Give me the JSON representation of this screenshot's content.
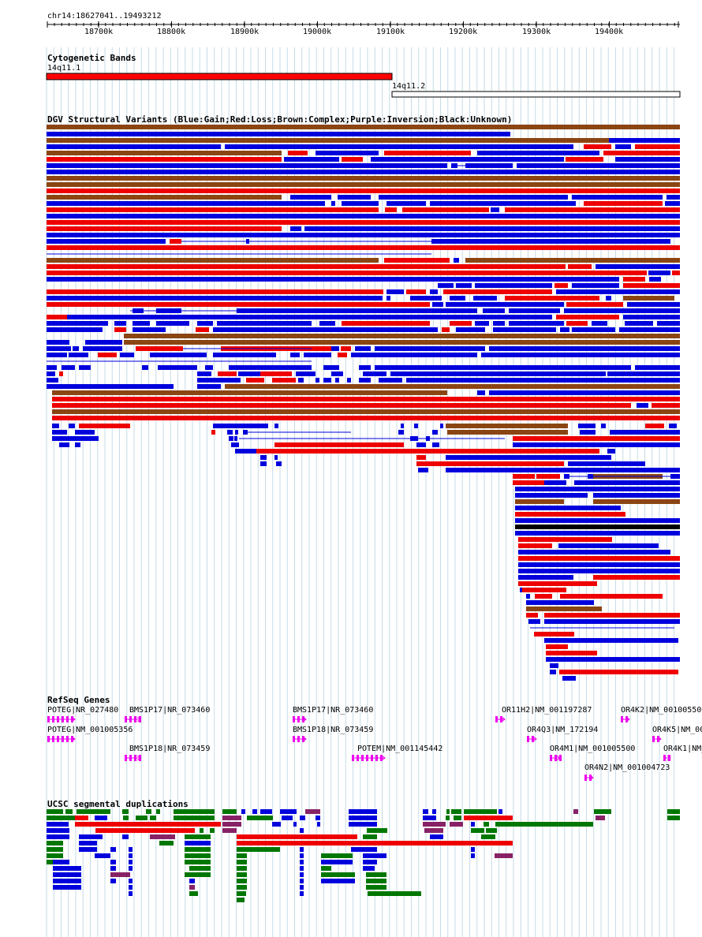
{
  "ruler": {
    "label": "chr14:18627041..19493212",
    "ticks": [
      "18700k",
      "18800k",
      "18900k",
      "19000k",
      "19100k",
      "19200k",
      "19300k",
      "19400k"
    ]
  },
  "cyto": {
    "title": "Cytogenetic Bands",
    "bands": [
      {
        "label": "14q11.1",
        "color": "#ff0000"
      },
      {
        "label": "14q11.2",
        "color": "#ffffff"
      }
    ]
  },
  "dgv": {
    "title": "DGV Structural Variants (Blue:Gain;Red:Loss;Brown:Complex;Purple:Inversion;Black:Unknown)",
    "colors": {
      "B": "#0000dd",
      "R": "#ee0000",
      "N": "#8b4513",
      "K": "#000000",
      "P": "#880088"
    }
  },
  "refseq": {
    "title": "RefSeq Genes",
    "color": "#ee00ee",
    "labels": [
      "POTEG|NR_027480",
      "BMS1P17|NR_073460",
      "BMS1P17|NR_073460",
      "OR11H2|NM_001197287",
      "OR4K2|NM_00100550",
      "POTEG|NM_001005356",
      "BMS1P18|NR_073459",
      "OR4Q3|NM_172194",
      "OR4K5|NM_00",
      "BMS1P18|NR_073459",
      "POTEM|NM_001145442",
      "OR4M1|NM_001005500",
      "OR4K1|NM_",
      "OR4N2|NM_001004723"
    ]
  },
  "segdup": {
    "title": "UCSC segmental duplications",
    "colors": {
      "G": "#007700",
      "B": "#0000dd",
      "R": "#ee0000",
      "P": "#882266"
    }
  }
}
